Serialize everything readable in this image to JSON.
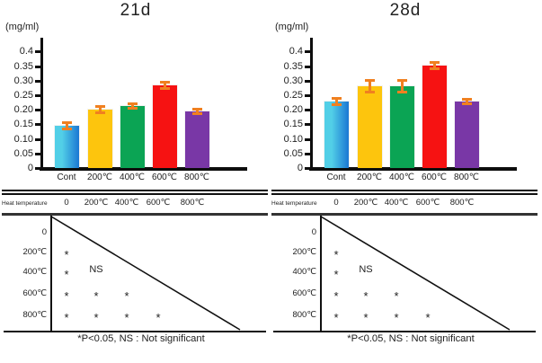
{
  "chart_data": [
    {
      "type": "bar",
      "title": "21d",
      "ylabel": "(mg/ml)",
      "categories": [
        "Cont",
        "200℃",
        "400℃",
        "600℃",
        "800℃"
      ],
      "values": [
        0.145,
        0.2,
        0.213,
        0.285,
        0.195
      ],
      "errors": [
        0.013,
        0.012,
        0.009,
        0.013,
        0.009
      ],
      "bar_colors": [
        "gradient:#52cfe7|#1b77d3",
        "#fdc50d",
        "#0ba454",
        "#f61212",
        "#7937a6"
      ],
      "error_color": "#f08020",
      "ylim": [
        0,
        0.4
      ],
      "ytick_labels": [
        "0.4",
        "0.35",
        "0.30",
        "0.25",
        "0.20",
        "0.15",
        "0.10",
        "0.05",
        "0"
      ],
      "ytick_values": [
        0.4,
        0.35,
        0.3,
        0.25,
        0.2,
        0.15,
        0.1,
        0.05,
        0
      ],
      "grid": false,
      "legend": "none"
    },
    {
      "type": "bar",
      "title": "28d",
      "ylabel": "(mg/ml)",
      "categories": [
        "Cont",
        "200℃",
        "400℃",
        "600℃",
        "800℃"
      ],
      "values": [
        0.228,
        0.282,
        0.28,
        0.353,
        0.228
      ],
      "errors": [
        0.012,
        0.022,
        0.022,
        0.012,
        0.008
      ],
      "bar_colors": [
        "gradient:#52cfe7|#1b77d3",
        "#fdc50d",
        "#0ba454",
        "#f61212",
        "#7937a6"
      ],
      "error_color": "#f08020",
      "ylim": [
        0,
        0.4
      ],
      "ytick_labels": [
        "0.4",
        "0.35",
        "0.30",
        "0.25",
        "0.20",
        "0.15",
        "0.10",
        "0.05",
        "0"
      ],
      "ytick_values": [
        0.4,
        0.35,
        0.3,
        0.25,
        0.2,
        0.15,
        0.1,
        0.05,
        0
      ],
      "grid": false,
      "legend": "none"
    }
  ],
  "tables": [
    {
      "corner_label": "Heat temperature",
      "columns": [
        "0",
        "200℃",
        "400℃",
        "600℃",
        "800℃"
      ],
      "rows": [
        {
          "label": "0",
          "cells": [
            "",
            "",
            "",
            ""
          ]
        },
        {
          "label": "200℃",
          "cells": [
            "*",
            "",
            "",
            ""
          ]
        },
        {
          "label": "400℃",
          "cells": [
            "*",
            "NS",
            "",
            ""
          ]
        },
        {
          "label": "600℃",
          "cells": [
            "*",
            "*",
            "*",
            ""
          ]
        },
        {
          "label": "800℃",
          "cells": [
            "*",
            "*",
            "*",
            "*"
          ]
        }
      ],
      "footnote": "*P<0.05,  NS : Not significant"
    },
    {
      "corner_label": "Heat temperature",
      "columns": [
        "0",
        "200℃",
        "400℃",
        "600℃",
        "800℃"
      ],
      "rows": [
        {
          "label": "0",
          "cells": [
            "",
            "",
            "",
            ""
          ]
        },
        {
          "label": "200℃",
          "cells": [
            "*",
            "",
            "",
            ""
          ]
        },
        {
          "label": "400℃",
          "cells": [
            "*",
            "NS",
            "",
            ""
          ]
        },
        {
          "label": "600℃",
          "cells": [
            "*",
            "*",
            "*",
            ""
          ]
        },
        {
          "label": "800℃",
          "cells": [
            "*",
            "*",
            "*",
            "*"
          ]
        }
      ],
      "footnote": "*P<0.05,  NS : Not significant"
    }
  ]
}
